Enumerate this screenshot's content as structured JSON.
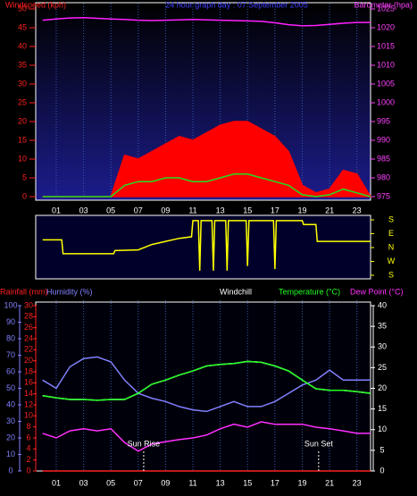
{
  "chart_data": [
    {
      "type": "line",
      "title": "24 hour graph day : 07 September 2005",
      "ylabel": "Windspeed (kph)",
      "y2label": "Barometer (hpa)",
      "ylabel_color": "#ff2020",
      "y2label_color": "#ff40ff",
      "title_color": "#4040ff",
      "x": [
        0,
        1,
        2,
        3,
        4,
        5,
        6,
        7,
        8,
        9,
        10,
        11,
        12,
        13,
        14,
        15,
        16,
        17,
        18,
        19,
        20,
        21,
        22,
        23,
        24
      ],
      "xlim": [
        -0.5,
        24
      ],
      "xticks": [
        {
          "value": 1,
          "label": "01"
        },
        {
          "value": 3,
          "label": "03"
        },
        {
          "value": 5,
          "label": "05"
        },
        {
          "value": 7,
          "label": "07"
        },
        {
          "value": 9,
          "label": "09"
        },
        {
          "value": 11,
          "label": "11"
        },
        {
          "value": 13,
          "label": "13"
        },
        {
          "value": 15,
          "label": "15"
        },
        {
          "value": 17,
          "label": "17"
        },
        {
          "value": 19,
          "label": "19"
        },
        {
          "value": 21,
          "label": "21"
        },
        {
          "value": 23,
          "label": "23"
        }
      ],
      "ylim": [
        0,
        50
      ],
      "yticks": [
        0,
        5,
        10,
        15,
        20,
        25,
        30,
        35,
        40,
        45,
        50
      ],
      "y2lim": [
        975,
        1025
      ],
      "y2ticks": [
        975,
        980,
        985,
        990,
        995,
        1000,
        1005,
        1010,
        1015,
        1020,
        1025
      ],
      "grid": "x",
      "series": [
        {
          "color": "#ff0000",
          "fill": true,
          "values": [
            0,
            0,
            0,
            0,
            0,
            0,
            11,
            10,
            12,
            14,
            16,
            15,
            17,
            19,
            20,
            20,
            18,
            16,
            12,
            3,
            1,
            2,
            7,
            6,
            0
          ]
        },
        {
          "color": "#20e020",
          "values": [
            0,
            0,
            0,
            0,
            0,
            0,
            3,
            4,
            4,
            5,
            5,
            4,
            4,
            5,
            6,
            6,
            5,
            4,
            3,
            0.5,
            0,
            0.5,
            2,
            1,
            0
          ]
        },
        {
          "color": "#ff20ff",
          "axis": "y2",
          "values": [
            1022,
            1022.3,
            1022.6,
            1022.7,
            1022.5,
            1022.3,
            1022.2,
            1022,
            1021.9,
            1022,
            1022.1,
            1022.2,
            1022.1,
            1022,
            1021.9,
            1021.8,
            1021.7,
            1021.3,
            1020.8,
            1020.5,
            1020.6,
            1020.9,
            1021.2,
            1021.4,
            1021.4
          ]
        }
      ]
    },
    {
      "type": "line",
      "x": [
        0,
        1.4,
        1.5,
        5.2,
        5.3,
        7,
        8,
        9,
        10,
        10.9,
        11,
        11.4,
        11.5,
        11.6,
        12.4,
        12.5,
        12.6,
        13.4,
        13.5,
        13.6,
        14.9,
        15,
        15.1,
        16.9,
        17,
        17.1,
        19,
        19.1,
        20,
        20.1,
        22,
        24
      ],
      "xlim": [
        -0.5,
        24
      ],
      "ylim": [
        0,
        360
      ],
      "y_inverted": true,
      "yticks": [
        {
          "value": 0,
          "label": "S"
        },
        {
          "value": 90,
          "label": "E"
        },
        {
          "value": 180,
          "label": "N"
        },
        {
          "value": 270,
          "label": "W"
        },
        {
          "value": 360,
          "label": "S"
        }
      ],
      "series": [
        {
          "color": "#ffff00",
          "values": [
            130,
            130,
            220,
            220,
            200,
            195,
            160,
            140,
            120,
            110,
            5,
            5,
            330,
            5,
            5,
            330,
            5,
            5,
            330,
            5,
            5,
            300,
            5,
            5,
            320,
            5,
            5,
            30,
            30,
            140,
            140,
            140
          ]
        }
      ]
    },
    {
      "type": "line",
      "x": [
        0,
        1,
        2,
        3,
        4,
        5,
        6,
        7,
        8,
        9,
        10,
        11,
        12,
        13,
        14,
        15,
        16,
        17,
        18,
        19,
        20,
        21,
        22,
        23,
        24
      ],
      "xlim": [
        -0.5,
        24
      ],
      "xticks": [
        {
          "value": 1,
          "label": "01"
        },
        {
          "value": 3,
          "label": "03"
        },
        {
          "value": 5,
          "label": "05"
        },
        {
          "value": 7,
          "label": "07"
        },
        {
          "value": 9,
          "label": "09"
        },
        {
          "value": 11,
          "label": "11"
        },
        {
          "value": 13,
          "label": "13"
        },
        {
          "value": 15,
          "label": "15"
        },
        {
          "value": 17,
          "label": "17"
        },
        {
          "value": 19,
          "label": "19"
        },
        {
          "value": 21,
          "label": "21"
        },
        {
          "value": 23,
          "label": "23"
        }
      ],
      "ylim": [
        0,
        30
      ],
      "yticks": [
        0,
        2,
        4,
        6,
        8,
        10,
        12,
        14,
        16,
        18,
        20,
        22,
        24,
        26,
        28,
        30
      ],
      "y2lim": [
        0,
        40
      ],
      "y2ticks": [
        0,
        5,
        10,
        15,
        20,
        25,
        30,
        35,
        40
      ],
      "y3lim": [
        0,
        100
      ],
      "y3ticks": [
        0,
        10,
        20,
        30,
        40,
        50,
        60,
        70,
        80,
        90,
        100
      ],
      "grid": "x",
      "series": [
        {
          "name": "Rainfall (mm)",
          "color": "#ff2020",
          "axis": "y",
          "values": [
            0,
            0,
            0,
            0,
            0,
            0,
            0,
            0,
            0,
            0,
            0,
            0,
            0,
            0,
            0,
            0,
            0,
            0,
            0,
            0,
            0,
            0,
            0,
            0,
            0
          ]
        },
        {
          "name": "Humidity (%)",
          "color": "#8080ff",
          "axis": "y3",
          "values": [
            55,
            50,
            63,
            68,
            69,
            66,
            55,
            47,
            44,
            42,
            39,
            37,
            36,
            39,
            42,
            39,
            39,
            42,
            47,
            52,
            55,
            61,
            55,
            55,
            55
          ]
        },
        {
          "name": "Windchill",
          "color": "#ffffff",
          "axis": "y2",
          "values": [
            18.2,
            17.7,
            17.3,
            17.3,
            17.1,
            17.3,
            17.3,
            18.8,
            21,
            22,
            23.2,
            24.2,
            25.4,
            25.8,
            26,
            26.5,
            26.3,
            25.4,
            24.2,
            22,
            19.9,
            19.5,
            19.5,
            19.2,
            18.8
          ]
        },
        {
          "name": "Temperature (°C)",
          "color": "#20ff20",
          "axis": "y2",
          "values": [
            18.2,
            17.7,
            17.3,
            17.3,
            17.1,
            17.3,
            17.3,
            18.8,
            21,
            22,
            23.2,
            24.2,
            25.4,
            25.8,
            26,
            26.5,
            26.3,
            25.4,
            24.2,
            22,
            19.9,
            19.5,
            19.5,
            19.2,
            18.8
          ]
        },
        {
          "name": "Dew Point (°C)",
          "color": "#ff30ff",
          "axis": "y2",
          "values": [
            9.1,
            8,
            9.7,
            10.2,
            9.7,
            10.2,
            6.9,
            4.8,
            6.5,
            7.1,
            7.6,
            8,
            8.7,
            10.2,
            11.3,
            10.6,
            11.9,
            11.3,
            11.3,
            11.3,
            10.6,
            10.2,
            9.7,
            9.1,
            9.1
          ]
        }
      ],
      "annotations": [
        {
          "text": "Sun Rise",
          "x": 7.4
        },
        {
          "text": "Sun Set",
          "x": 20.2
        }
      ]
    }
  ]
}
